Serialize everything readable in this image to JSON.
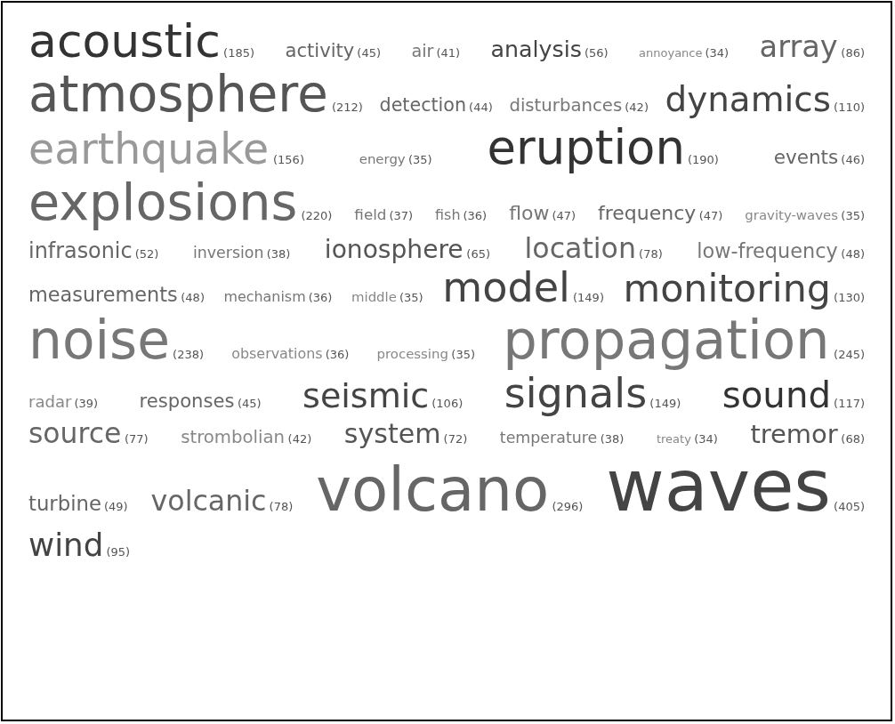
{
  "chart_data": {
    "type": "other",
    "value_labels": [
      "(185)",
      "(45)",
      "(41)",
      "(56)",
      "(34)",
      "(86)",
      "(212)",
      "(44)",
      "(42)",
      "(110)",
      "(156)",
      "(35)",
      "(190)",
      "(46)",
      "(220)",
      "(37)",
      "(36)",
      "(47)",
      "(47)",
      "(35)",
      "(52)",
      "(38)",
      "(65)",
      "(78)",
      "(48)",
      "(48)",
      "(36)",
      "(35)",
      "(149)",
      "(130)",
      "(238)",
      "(36)",
      "(35)",
      "(245)",
      "(39)",
      "(45)",
      "(106)",
      "(149)",
      "(117)",
      "(77)",
      "(42)",
      "(72)",
      "(38)",
      "(34)",
      "(68)",
      "(49)",
      "(78)",
      "(296)",
      "(405)",
      "(95)"
    ],
    "categories": [
      "acoustic",
      "activity",
      "air",
      "analysis",
      "annoyance",
      "array",
      "atmosphere",
      "detection",
      "disturbances",
      "dynamics",
      "earthquake",
      "energy",
      "eruption",
      "events",
      "explosions",
      "field",
      "fish",
      "flow",
      "frequency",
      "gravity-waves",
      "infrasonic",
      "inversion",
      "ionosphere",
      "location",
      "low-frequency",
      "measurements",
      "mechanism",
      "middle",
      "model",
      "monitoring",
      "noise",
      "observations",
      "processing",
      "propagation",
      "radar",
      "responses",
      "seismic",
      "signals",
      "sound",
      "source",
      "strombolian",
      "system",
      "temperature",
      "treaty",
      "tremor",
      "turbine",
      "volcanic",
      "volcano",
      "waves",
      "wind"
    ],
    "values": [
      185,
      45,
      41,
      56,
      34,
      86,
      212,
      44,
      42,
      110,
      156,
      35,
      190,
      46,
      220,
      37,
      36,
      47,
      47,
      35,
      52,
      38,
      65,
      78,
      48,
      48,
      36,
      35,
      149,
      130,
      238,
      36,
      35,
      245,
      39,
      45,
      106,
      149,
      117,
      77,
      42,
      72,
      38,
      34,
      68,
      49,
      78,
      296,
      405,
      95
    ],
    "colors": [
      "#333333",
      "#666666",
      "#777777",
      "#444444",
      "#888888",
      "#666666",
      "#555555",
      "#666666",
      "#777777",
      "#444444",
      "#999999",
      "#777777",
      "#333333",
      "#666666",
      "#666666",
      "#777777",
      "#777777",
      "#777777",
      "#666666",
      "#888888",
      "#666666",
      "#777777",
      "#555555",
      "#666666",
      "#777777",
      "#666666",
      "#777777",
      "#888888",
      "#444444",
      "#444444",
      "#777777",
      "#888888",
      "#888888",
      "#777777",
      "#888888",
      "#666666",
      "#444444",
      "#444444",
      "#333333",
      "#666666",
      "#888888",
      "#555555",
      "#777777",
      "#888888",
      "#555555",
      "#666666",
      "#666666",
      "#666666",
      "#444444",
      "#444444"
    ]
  }
}
